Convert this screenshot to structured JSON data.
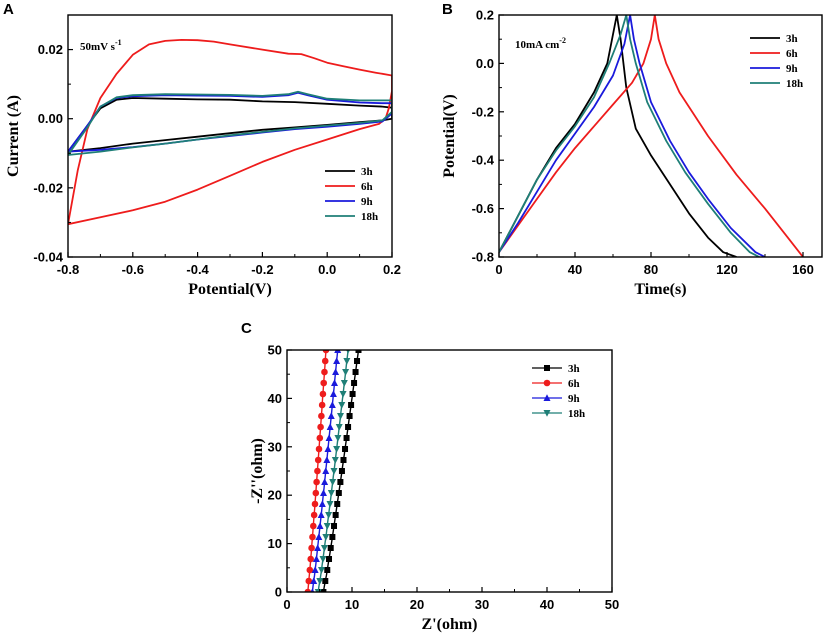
{
  "colors": {
    "3h": "#000000",
    "6h": "#ee1c1c",
    "9h": "#1a1adc",
    "18h": "#1f7f77"
  },
  "chart_data": [
    {
      "panel_label": "A",
      "type": "line",
      "title": "",
      "annotation": "50mV s",
      "annotation_sup": "-1",
      "xlabel": "Potential(V)",
      "ylabel": "Current (A)",
      "xlim": [
        -0.8,
        0.2
      ],
      "ylim": [
        -0.04,
        0.03
      ],
      "xticks": [
        -0.8,
        -0.6,
        -0.4,
        -0.2,
        0.0,
        0.2
      ],
      "xtick_labels": [
        "-0.8",
        "-0.6",
        "-0.4",
        "-0.2",
        "0.0",
        "0.2"
      ],
      "yticks": [
        -0.04,
        -0.02,
        0.0,
        0.02
      ],
      "ytick_labels": [
        "-0.04",
        "-0.02",
        "0.00",
        "0.02"
      ],
      "legend": "bottom-right",
      "series": [
        {
          "name": "3h",
          "color": "#000000",
          "points": [
            [
              -0.8,
              -0.0095
            ],
            [
              -0.74,
              -0.002
            ],
            [
              -0.7,
              0.003
            ],
            [
              -0.65,
              0.0055
            ],
            [
              -0.6,
              0.006
            ],
            [
              -0.5,
              0.0058
            ],
            [
              -0.4,
              0.0056
            ],
            [
              -0.3,
              0.0055
            ],
            [
              -0.2,
              0.005
            ],
            [
              -0.1,
              0.0048
            ],
            [
              0.0,
              0.0043
            ],
            [
              0.1,
              0.0038
            ],
            [
              0.17,
              0.0035
            ],
            [
              0.2,
              0.0032
            ],
            [
              0.2,
              0.0
            ],
            [
              0.17,
              -0.0005
            ],
            [
              0.1,
              -0.001
            ],
            [
              0.0,
              -0.0018
            ],
            [
              -0.1,
              -0.0025
            ],
            [
              -0.2,
              -0.0032
            ],
            [
              -0.3,
              -0.0042
            ],
            [
              -0.4,
              -0.0052
            ],
            [
              -0.5,
              -0.0062
            ],
            [
              -0.6,
              -0.0072
            ],
            [
              -0.7,
              -0.0085
            ],
            [
              -0.8,
              -0.0095
            ]
          ]
        },
        {
          "name": "6h",
          "color": "#ee1c1c",
          "points": [
            [
              -0.8,
              -0.0305
            ],
            [
              -0.77,
              -0.015
            ],
            [
              -0.74,
              -0.003
            ],
            [
              -0.7,
              0.006
            ],
            [
              -0.65,
              0.013
            ],
            [
              -0.6,
              0.0185
            ],
            [
              -0.55,
              0.0215
            ],
            [
              -0.5,
              0.0225
            ],
            [
              -0.45,
              0.0228
            ],
            [
              -0.4,
              0.0227
            ],
            [
              -0.35,
              0.0223
            ],
            [
              -0.3,
              0.0215
            ],
            [
              -0.2,
              0.02
            ],
            [
              -0.12,
              0.0188
            ],
            [
              -0.08,
              0.0187
            ],
            [
              -0.04,
              0.0175
            ],
            [
              0.0,
              0.0162
            ],
            [
              0.05,
              0.0152
            ],
            [
              0.1,
              0.0142
            ],
            [
              0.15,
              0.0133
            ],
            [
              0.2,
              0.0125
            ],
            [
              0.2,
              0.008
            ],
            [
              0.19,
              0.003
            ],
            [
              0.18,
              0.0
            ],
            [
              0.16,
              -0.0015
            ],
            [
              0.1,
              -0.003
            ],
            [
              0.0,
              -0.006
            ],
            [
              -0.1,
              -0.009
            ],
            [
              -0.2,
              -0.0125
            ],
            [
              -0.3,
              -0.0165
            ],
            [
              -0.4,
              -0.0205
            ],
            [
              -0.5,
              -0.024
            ],
            [
              -0.6,
              -0.0265
            ],
            [
              -0.7,
              -0.0285
            ],
            [
              -0.8,
              -0.0305
            ]
          ]
        },
        {
          "name": "9h",
          "color": "#1a1adc",
          "points": [
            [
              -0.8,
              -0.0095
            ],
            [
              -0.74,
              -0.002
            ],
            [
              -0.7,
              0.0035
            ],
            [
              -0.65,
              0.006
            ],
            [
              -0.6,
              0.0065
            ],
            [
              -0.5,
              0.0068
            ],
            [
              -0.4,
              0.0067
            ],
            [
              -0.3,
              0.0066
            ],
            [
              -0.2,
              0.0063
            ],
            [
              -0.12,
              0.0068
            ],
            [
              -0.09,
              0.0075
            ],
            [
              -0.06,
              0.0068
            ],
            [
              0.0,
              0.0055
            ],
            [
              0.1,
              0.0047
            ],
            [
              0.17,
              0.0045
            ],
            [
              0.2,
              0.0045
            ],
            [
              0.2,
              0.0015
            ],
            [
              0.17,
              -0.0008
            ],
            [
              0.1,
              -0.0015
            ],
            [
              0.0,
              -0.0023
            ],
            [
              -0.1,
              -0.003
            ],
            [
              -0.2,
              -0.004
            ],
            [
              -0.3,
              -0.005
            ],
            [
              -0.4,
              -0.006
            ],
            [
              -0.5,
              -0.0072
            ],
            [
              -0.6,
              -0.0082
            ],
            [
              -0.7,
              -0.009
            ],
            [
              -0.8,
              -0.0095
            ]
          ]
        },
        {
          "name": "18h",
          "color": "#1f7f77",
          "points": [
            [
              -0.8,
              -0.0105
            ],
            [
              -0.74,
              -0.0025
            ],
            [
              -0.7,
              0.0035
            ],
            [
              -0.65,
              0.0062
            ],
            [
              -0.6,
              0.0068
            ],
            [
              -0.5,
              0.0071
            ],
            [
              -0.4,
              0.007
            ],
            [
              -0.3,
              0.0069
            ],
            [
              -0.2,
              0.0066
            ],
            [
              -0.12,
              0.0071
            ],
            [
              -0.09,
              0.0078
            ],
            [
              -0.06,
              0.0071
            ],
            [
              0.0,
              0.0058
            ],
            [
              0.1,
              0.0053
            ],
            [
              0.17,
              0.0053
            ],
            [
              0.2,
              0.0053
            ],
            [
              0.2,
              0.002
            ],
            [
              0.17,
              -0.0005
            ],
            [
              0.1,
              -0.0012
            ],
            [
              0.0,
              -0.002
            ],
            [
              -0.1,
              -0.0028
            ],
            [
              -0.2,
              -0.0038
            ],
            [
              -0.3,
              -0.0048
            ],
            [
              -0.4,
              -0.006
            ],
            [
              -0.5,
              -0.0072
            ],
            [
              -0.6,
              -0.0083
            ],
            [
              -0.7,
              -0.0095
            ],
            [
              -0.8,
              -0.0105
            ]
          ]
        }
      ]
    },
    {
      "panel_label": "B",
      "type": "line",
      "title": "",
      "annotation": "10mA cm",
      "annotation_sup": "-2",
      "xlabel": "Time(s)",
      "ylabel": "Potential(V)",
      "xlim": [
        0,
        170
      ],
      "ylim": [
        -0.8,
        0.2
      ],
      "xticks": [
        0,
        40,
        80,
        120,
        160
      ],
      "xtick_labels": [
        "0",
        "40",
        "80",
        "120",
        "160"
      ],
      "yticks": [
        -0.8,
        -0.6,
        -0.4,
        -0.2,
        0.0,
        0.2
      ],
      "ytick_labels": [
        "-0.8",
        "-0.6",
        "-0.4",
        "-0.2",
        "0.0",
        "0.2"
      ],
      "legend": "top-right",
      "series": [
        {
          "name": "3h",
          "color": "#000000",
          "points": [
            [
              0,
              -0.78
            ],
            [
              10,
              -0.63
            ],
            [
              20,
              -0.48
            ],
            [
              30,
              -0.35
            ],
            [
              40,
              -0.25
            ],
            [
              50,
              -0.12
            ],
            [
              57,
              0.0
            ],
            [
              62,
              0.2
            ],
            [
              64,
              0.1
            ],
            [
              67,
              -0.1
            ],
            [
              72,
              -0.27
            ],
            [
              80,
              -0.38
            ],
            [
              90,
              -0.5
            ],
            [
              100,
              -0.62
            ],
            [
              110,
              -0.72
            ],
            [
              118,
              -0.78
            ],
            [
              125,
              -0.8
            ]
          ]
        },
        {
          "name": "6h",
          "color": "#ee1c1c",
          "points": [
            [
              0,
              -0.78
            ],
            [
              10,
              -0.67
            ],
            [
              20,
              -0.56
            ],
            [
              30,
              -0.45
            ],
            [
              40,
              -0.35
            ],
            [
              50,
              -0.26
            ],
            [
              60,
              -0.17
            ],
            [
              70,
              -0.08
            ],
            [
              76,
              0.0
            ],
            [
              80,
              0.1
            ],
            [
              82,
              0.2
            ],
            [
              84,
              0.1
            ],
            [
              88,
              0.0
            ],
            [
              95,
              -0.12
            ],
            [
              110,
              -0.3
            ],
            [
              125,
              -0.46
            ],
            [
              140,
              -0.6
            ],
            [
              152,
              -0.72
            ],
            [
              160,
              -0.8
            ]
          ]
        },
        {
          "name": "9h",
          "color": "#1a1adc",
          "points": [
            [
              0,
              -0.78
            ],
            [
              10,
              -0.66
            ],
            [
              20,
              -0.53
            ],
            [
              30,
              -0.4
            ],
            [
              40,
              -0.29
            ],
            [
              50,
              -0.18
            ],
            [
              60,
              -0.05
            ],
            [
              66,
              0.08
            ],
            [
              69,
              0.2
            ],
            [
              71,
              0.1
            ],
            [
              74,
              0.0
            ],
            [
              80,
              -0.16
            ],
            [
              90,
              -0.32
            ],
            [
              100,
              -0.45
            ],
            [
              110,
              -0.56
            ],
            [
              122,
              -0.68
            ],
            [
              135,
              -0.78
            ],
            [
              140,
              -0.8
            ]
          ]
        },
        {
          "name": "18h",
          "color": "#1f7f77",
          "points": [
            [
              0,
              -0.78
            ],
            [
              10,
              -0.63
            ],
            [
              20,
              -0.48
            ],
            [
              30,
              -0.36
            ],
            [
              40,
              -0.26
            ],
            [
              50,
              -0.14
            ],
            [
              58,
              0.0
            ],
            [
              64,
              0.12
            ],
            [
              67,
              0.2
            ],
            [
              69,
              0.1
            ],
            [
              72,
              0.0
            ],
            [
              78,
              -0.16
            ],
            [
              88,
              -0.32
            ],
            [
              98,
              -0.45
            ],
            [
              110,
              -0.58
            ],
            [
              122,
              -0.7
            ],
            [
              132,
              -0.78
            ],
            [
              137,
              -0.8
            ]
          ]
        }
      ]
    },
    {
      "panel_label": "C",
      "type": "scatter",
      "title": "",
      "xlabel": "Z'(ohm)",
      "ylabel": "-Z''(ohm)",
      "xlim": [
        0,
        50
      ],
      "ylim": [
        0,
        50
      ],
      "xticks": [
        0,
        10,
        20,
        30,
        40,
        50
      ],
      "xtick_labels": [
        "0",
        "10",
        "20",
        "30",
        "40",
        "50"
      ],
      "yticks": [
        0,
        10,
        20,
        30,
        40,
        50
      ],
      "ytick_labels": [
        "0",
        "10",
        "20",
        "30",
        "40",
        "50"
      ],
      "legend": "top-right",
      "series": [
        {
          "name": "3h",
          "color": "#000000",
          "marker": "square",
          "x0": 5.6,
          "x_end": 11.0,
          "y_end": 50
        },
        {
          "name": "6h",
          "color": "#ee1c1c",
          "marker": "circle",
          "x0": 3.2,
          "x_end": 6.0,
          "y_end": 50
        },
        {
          "name": "9h",
          "color": "#1a1adc",
          "marker": "triangle-up",
          "x0": 3.9,
          "x_end": 7.8,
          "y_end": 50
        },
        {
          "name": "18h",
          "color": "#1f7f77",
          "marker": "triangle-down",
          "x0": 4.8,
          "x_end": 9.4,
          "y_end": 50
        }
      ]
    }
  ]
}
